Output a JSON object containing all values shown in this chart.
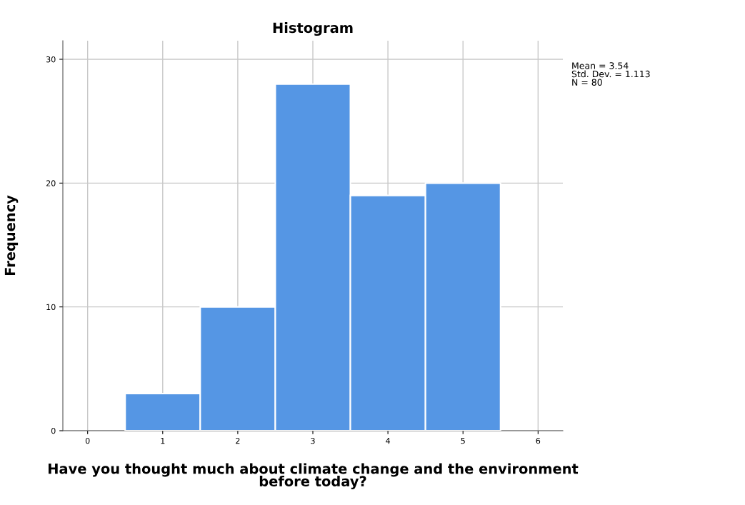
{
  "chart_data": {
    "type": "histogram",
    "title": "Histogram",
    "xlabel": "Have you thought much about climate change and the environment\nbefore today?",
    "ylabel": "Frequency",
    "bins": [
      0.5,
      1.5,
      2.5,
      3.5,
      4.5,
      5.5
    ],
    "values": [
      3,
      10,
      28,
      19,
      20
    ],
    "color": "#5596e4",
    "xlim": [
      -0.33,
      6.33
    ],
    "xticks": [
      0,
      1,
      2,
      3,
      4,
      5,
      6
    ],
    "ylim": [
      0,
      31.5
    ],
    "yticks": [
      0,
      10,
      20,
      30
    ],
    "grid": true,
    "annotations": [
      "Mean = 3.54\nStd. Dev. = 1.113\nN = 80"
    ]
  }
}
